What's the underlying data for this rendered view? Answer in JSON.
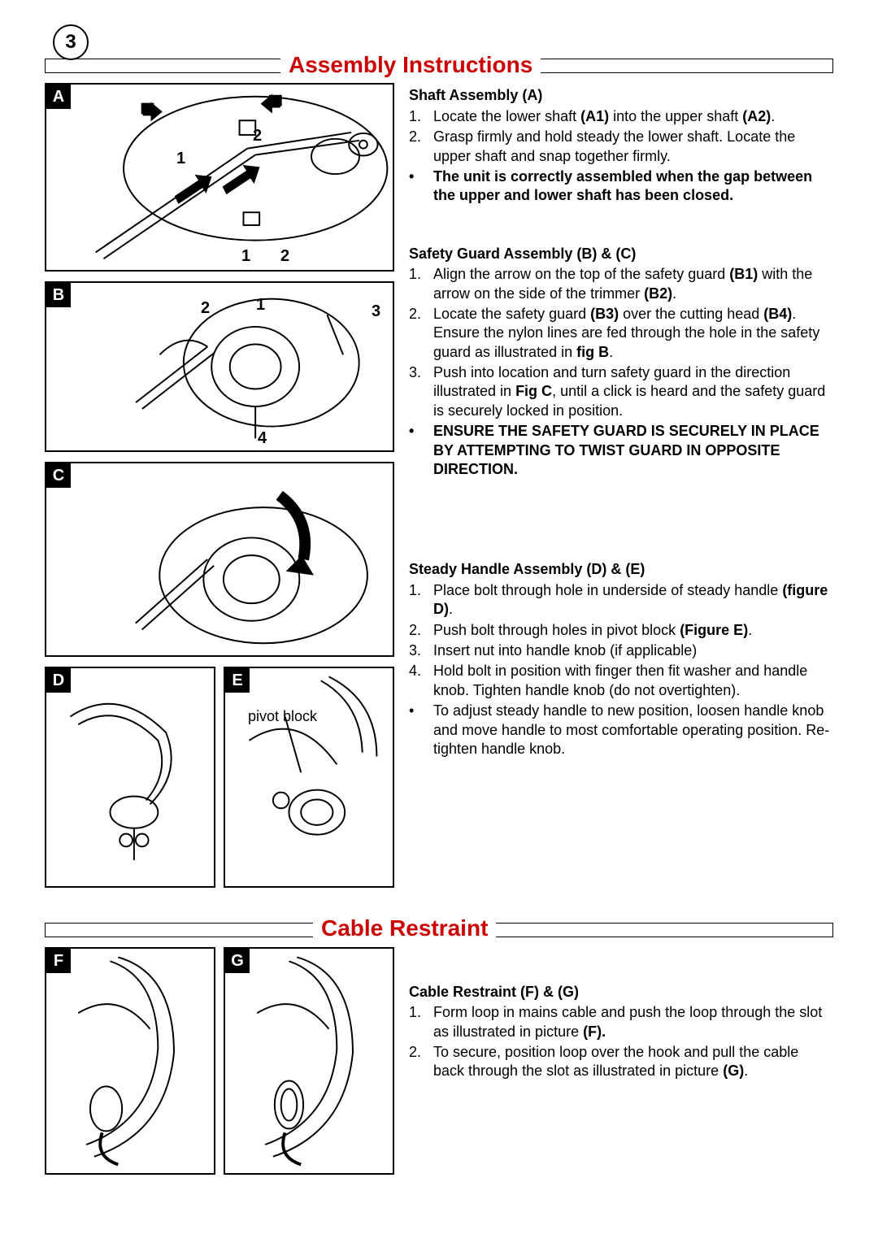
{
  "page_number": "3",
  "section1_title": "Assembly Instructions",
  "section2_title": "Cable Restraint",
  "figures": {
    "A": {
      "label": "A",
      "nums_top": [
        "2"
      ],
      "nums_mid": [
        "1"
      ],
      "nums_bot": [
        "1",
        "2"
      ]
    },
    "B": {
      "label": "B",
      "nums": [
        "2",
        "1",
        "3",
        "4"
      ]
    },
    "C": {
      "label": "C"
    },
    "D": {
      "label": "D"
    },
    "E": {
      "label": "E",
      "caption": "pivot block"
    },
    "F": {
      "label": "F"
    },
    "G": {
      "label": "G"
    }
  },
  "shaft": {
    "heading": "Shaft Assembly (A)",
    "steps": [
      {
        "n": "1.",
        "html": "Locate the lower shaft <b>(A1)</b> into the upper shaft <b>(A2)</b>."
      },
      {
        "n": "2.",
        "html": "Grasp firmly and hold steady the lower shaft. Locate the upper shaft and snap together firmly."
      }
    ],
    "bullets": [
      {
        "html": "<b>The unit is correctly assembled when the gap between the upper and lower shaft has been closed.</b>"
      }
    ]
  },
  "guard": {
    "heading": "Safety Guard Assembly (B) & (C)",
    "steps": [
      {
        "n": "1.",
        "html": "Align the arrow on the top of the safety guard <b>(B1)</b> with the arrow on the side of the trimmer <b>(B2)</b>."
      },
      {
        "n": "2.",
        "html": "Locate the safety guard <b>(B3)</b> over the cutting head <b>(B4)</b>.  Ensure the nylon lines are fed through the hole in the safety guard as illustrated in <b>fig B</b>."
      },
      {
        "n": "3.",
        "html": "Push into location and turn safety guard in the direction illustrated in <b>Fig C</b>, until a click is heard and the safety guard is securely locked in position."
      }
    ],
    "bullets": [
      {
        "html": "<b>ENSURE THE SAFETY GUARD IS SECURELY IN PLACE BY ATTEMPTING TO TWIST GUARD IN OPPOSITE DIRECTION.</b>"
      }
    ]
  },
  "handle": {
    "heading": "Steady Handle Assembly (D) & (E)",
    "steps": [
      {
        "n": "1.",
        "html": "Place bolt through hole in underside of steady handle <b>(figure D)</b>."
      },
      {
        "n": "2.",
        "html": "Push bolt through holes in pivot block <b>(Figure E)</b>."
      },
      {
        "n": "3.",
        "html": "Insert nut into handle knob (if applicable)"
      },
      {
        "n": "4.",
        "html": "Hold bolt in position with finger then fit washer and handle knob.  Tighten handle knob (do not overtighten)."
      }
    ],
    "bullets": [
      {
        "html": "To adjust steady handle to new position, loosen handle knob and move handle to most comfortable operating position.  Re-tighten handle knob."
      }
    ]
  },
  "cable": {
    "heading": "Cable Restraint (F) & (G)",
    "steps": [
      {
        "n": "1.",
        "html": "Form loop in mains cable and push the loop through the slot as illustrated in picture <b>(F).</b>"
      },
      {
        "n": "2.",
        "html": "To secure, position loop over the hook and pull the cable back through the slot as illustrated in picture <b>(G)</b>."
      }
    ]
  },
  "colors": {
    "title": "#c00",
    "text": "#000",
    "border": "#000"
  }
}
